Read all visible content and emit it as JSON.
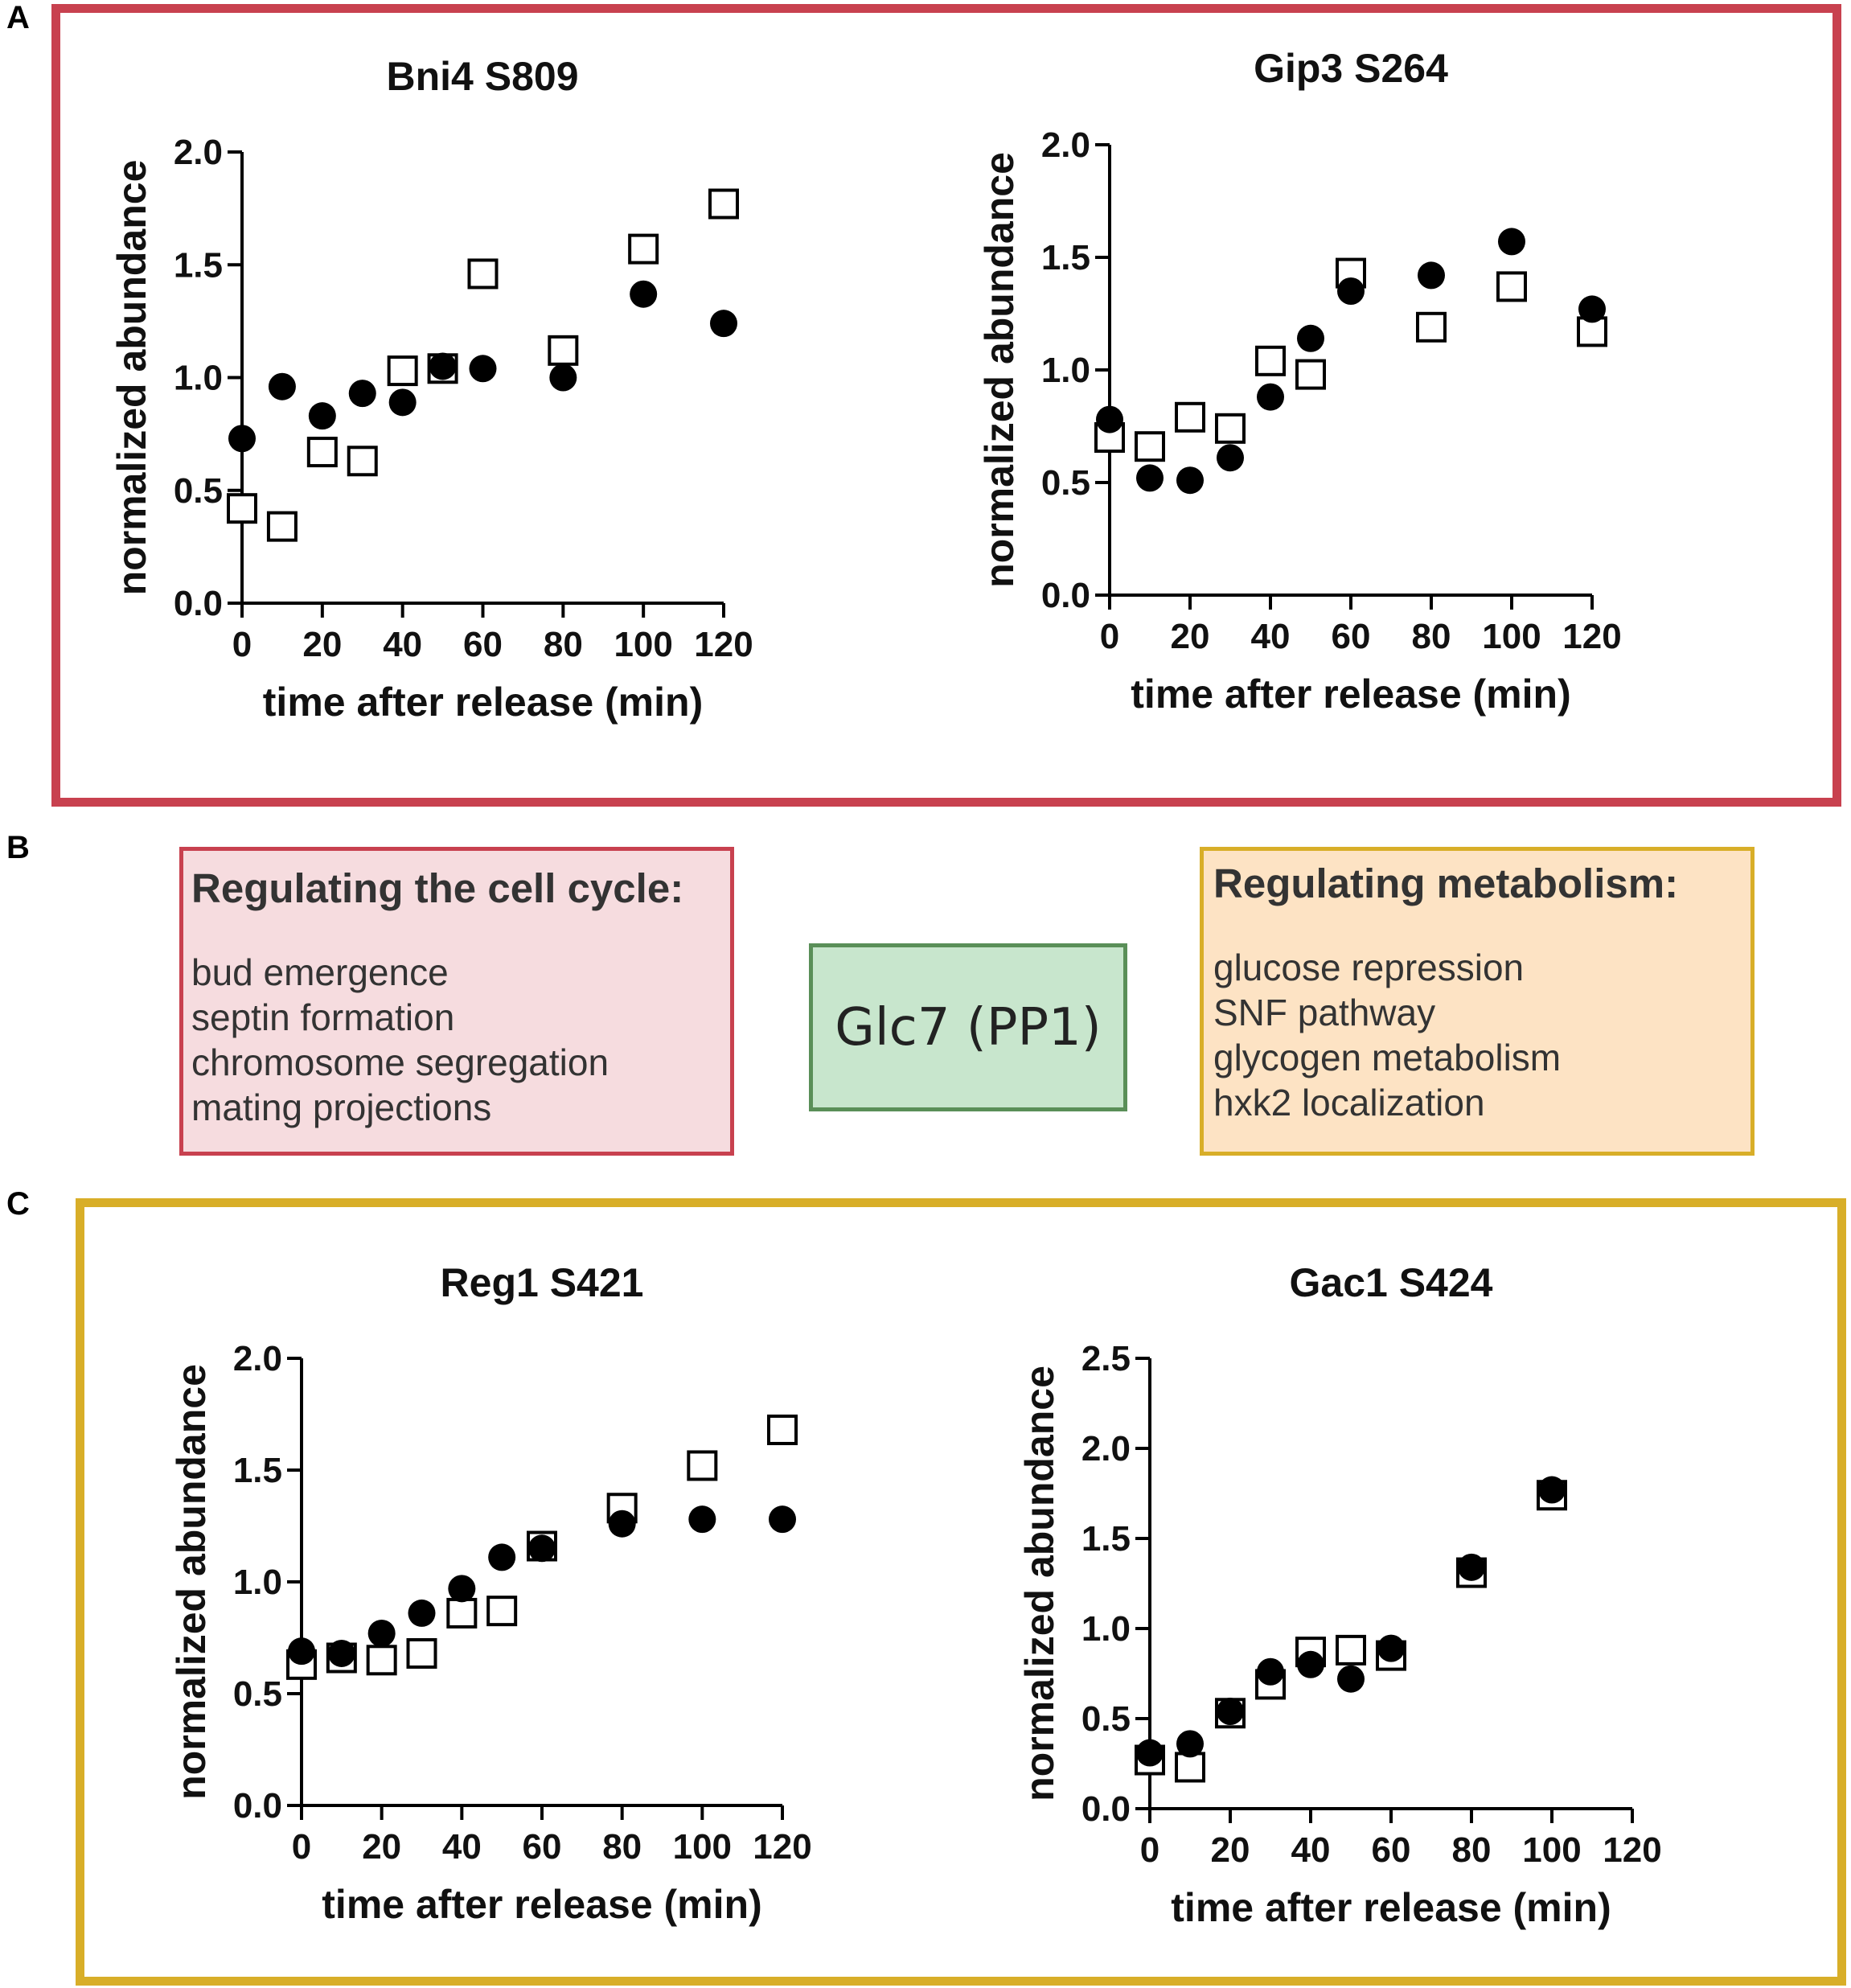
{
  "panels": {
    "a_label": "A",
    "b_label": "B",
    "c_label": "C"
  },
  "panel_b": {
    "cell_cycle": {
      "title": "Regulating the cell cycle:",
      "items": [
        "bud emergence",
        "septin formation",
        "chromosome segregation",
        "mating projections"
      ]
    },
    "center": {
      "label": "Glc7 (PP1)"
    },
    "metabolism": {
      "title": "Regulating metabolism:",
      "items": [
        "glucose repression",
        "SNF pathway",
        "glycogen metabolism",
        "hxk2 localization"
      ]
    }
  },
  "colors": {
    "panel_a_border": "#c8414f",
    "panel_c_border": "#d8ae28",
    "cell_cycle_fill": "#f6dcdf",
    "metabolism_fill": "#fde3c4",
    "glc7_fill": "#c8e6cd",
    "glc7_border": "#5a8f58"
  },
  "chart_data": [
    {
      "type": "scatter",
      "title": "Bni4 S809",
      "xlabel": "time after release (min)",
      "ylabel": "normalized abundance",
      "xlim": [
        0,
        120
      ],
      "ylim": [
        0,
        2.0
      ],
      "xticks": [
        "0",
        "20",
        "40",
        "60",
        "80",
        "100",
        "120"
      ],
      "yticks": [
        "0.0",
        "0.5",
        "1.0",
        "1.5",
        "2.0"
      ],
      "series": [
        {
          "name": "filled circle",
          "marker": "circle",
          "points": [
            [
              0,
              0.73
            ],
            [
              10,
              0.96
            ],
            [
              20,
              0.83
            ],
            [
              30,
              0.93
            ],
            [
              40,
              0.89
            ],
            [
              50,
              1.05
            ],
            [
              60,
              1.04
            ],
            [
              80,
              1.0
            ],
            [
              100,
              1.37
            ],
            [
              120,
              1.24
            ]
          ]
        },
        {
          "name": "open square",
          "marker": "square",
          "points": [
            [
              0,
              0.42
            ],
            [
              10,
              0.34
            ],
            [
              20,
              0.67
            ],
            [
              30,
              0.63
            ],
            [
              40,
              1.03
            ],
            [
              50,
              1.04
            ],
            [
              60,
              1.46
            ],
            [
              80,
              1.12
            ],
            [
              100,
              1.57
            ],
            [
              120,
              1.77
            ]
          ]
        }
      ]
    },
    {
      "type": "scatter",
      "title": "Gip3 S264",
      "xlabel": "time after release (min)",
      "ylabel": "normalized abundance",
      "xlim": [
        0,
        120
      ],
      "ylim": [
        0,
        2.0
      ],
      "xticks": [
        "0",
        "20",
        "40",
        "60",
        "80",
        "100",
        "120"
      ],
      "yticks": [
        "0.0",
        "0.5",
        "1.0",
        "1.5",
        "2.0"
      ],
      "series": [
        {
          "name": "filled circle",
          "marker": "circle",
          "points": [
            [
              0,
              0.78
            ],
            [
              10,
              0.52
            ],
            [
              20,
              0.51
            ],
            [
              30,
              0.61
            ],
            [
              40,
              0.88
            ],
            [
              50,
              1.14
            ],
            [
              60,
              1.35
            ],
            [
              80,
              1.42
            ],
            [
              100,
              1.57
            ],
            [
              120,
              1.27
            ]
          ]
        },
        {
          "name": "open square",
          "marker": "square",
          "points": [
            [
              0,
              0.7
            ],
            [
              10,
              0.66
            ],
            [
              20,
              0.79
            ],
            [
              30,
              0.74
            ],
            [
              40,
              1.04
            ],
            [
              50,
              0.98
            ],
            [
              60,
              1.43
            ],
            [
              80,
              1.19
            ],
            [
              100,
              1.37
            ],
            [
              120,
              1.17
            ]
          ]
        }
      ]
    },
    {
      "type": "scatter",
      "title": "Reg1  S421",
      "xlabel": "time after release (min)",
      "ylabel": "normalized abundance",
      "xlim": [
        0,
        120
      ],
      "ylim": [
        0,
        2.0
      ],
      "xticks": [
        "0",
        "20",
        "40",
        "60",
        "80",
        "100",
        "120"
      ],
      "yticks": [
        "0.0",
        "0.5",
        "1.0",
        "1.5",
        "2.0"
      ],
      "series": [
        {
          "name": "filled circle",
          "marker": "circle",
          "points": [
            [
              0,
              0.69
            ],
            [
              10,
              0.68
            ],
            [
              20,
              0.77
            ],
            [
              30,
              0.86
            ],
            [
              40,
              0.97
            ],
            [
              50,
              1.11
            ],
            [
              60,
              1.15
            ],
            [
              80,
              1.26
            ],
            [
              100,
              1.28
            ],
            [
              120,
              1.28
            ]
          ]
        },
        {
          "name": "open square",
          "marker": "square",
          "points": [
            [
              0,
              0.63
            ],
            [
              10,
              0.66
            ],
            [
              20,
              0.65
            ],
            [
              30,
              0.68
            ],
            [
              40,
              0.86
            ],
            [
              50,
              0.87
            ],
            [
              60,
              1.16
            ],
            [
              80,
              1.33
            ],
            [
              100,
              1.52
            ],
            [
              120,
              1.68
            ]
          ]
        }
      ]
    },
    {
      "type": "scatter",
      "title": "Gac1 S424",
      "xlabel": "time after release (min)",
      "ylabel": "normalized abundance",
      "xlim": [
        0,
        120
      ],
      "ylim": [
        0,
        2.5
      ],
      "xticks": [
        "0",
        "20",
        "40",
        "60",
        "80",
        "100",
        "120"
      ],
      "yticks": [
        "0.0",
        "0.5",
        "1.0",
        "1.5",
        "2.0",
        "2.5"
      ],
      "series": [
        {
          "name": "filled circle",
          "marker": "circle",
          "points": [
            [
              0,
              0.31
            ],
            [
              10,
              0.36
            ],
            [
              20,
              0.54
            ],
            [
              30,
              0.76
            ],
            [
              40,
              0.8
            ],
            [
              50,
              0.72
            ],
            [
              60,
              0.89
            ],
            [
              80,
              1.34
            ],
            [
              100,
              1.77
            ]
          ]
        },
        {
          "name": "open square",
          "marker": "square",
          "points": [
            [
              0,
              0.27
            ],
            [
              10,
              0.23
            ],
            [
              20,
              0.53
            ],
            [
              30,
              0.69
            ],
            [
              40,
              0.87
            ],
            [
              50,
              0.88
            ],
            [
              60,
              0.85
            ],
            [
              80,
              1.31
            ],
            [
              100,
              1.74
            ]
          ]
        }
      ]
    }
  ]
}
